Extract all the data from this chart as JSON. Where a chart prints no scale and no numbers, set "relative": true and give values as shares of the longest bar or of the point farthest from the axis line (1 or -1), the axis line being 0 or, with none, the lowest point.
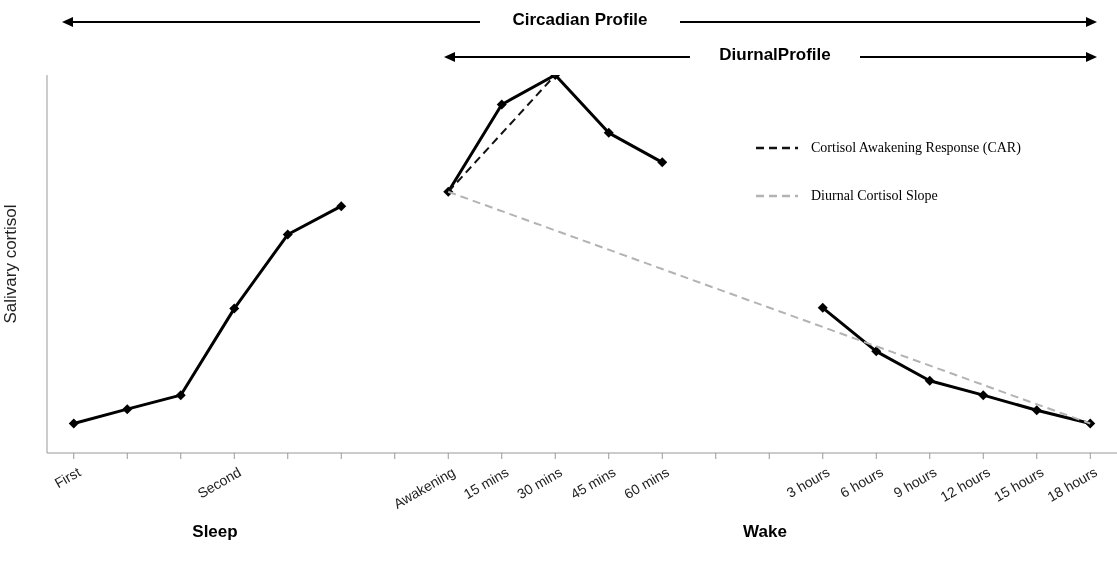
{
  "chart_data": {
    "type": "line",
    "relative": true,
    "ylabel": "Salivary cortisol",
    "categories": [
      "First",
      null,
      null,
      "Second",
      null,
      null,
      null,
      "Awakening",
      "15 mins",
      "30 mins",
      "45 mins",
      "60 mins",
      null,
      null,
      "3 hours",
      "6 hours",
      "9 hours",
      "12 hours",
      "15 hours",
      "18 hours"
    ],
    "series": [
      {
        "color": "#000000",
        "marker": "diamond",
        "line_style": "solid",
        "values": [
          0.078,
          0.116,
          0.153,
          0.382,
          0.578,
          0.653,
          null,
          0.691,
          0.922,
          1,
          0.847,
          0.769,
          null,
          null,
          0.384,
          0.269,
          0.191,
          0.153,
          0.113,
          0.078
        ]
      },
      {
        "name": "Cortisol Awakening Response (CAR)",
        "color": "#111111",
        "marker": "none",
        "line_style": "dashed",
        "x": [
          "Awakening",
          "30 mins"
        ],
        "values": [
          0.691,
          1
        ]
      },
      {
        "name": "Diurnal Cortisol Slope",
        "color": "#b3b3b3",
        "marker": "none",
        "line_style": "dashed",
        "x": [
          "Awakening",
          "18 hours"
        ],
        "values": [
          0.691,
          0.078
        ]
      }
    ],
    "legend": "top right",
    "grid": false,
    "annotations": [
      "Circadian Profile",
      "DiurnalProfile",
      "Sleep",
      "Wake"
    ]
  }
}
